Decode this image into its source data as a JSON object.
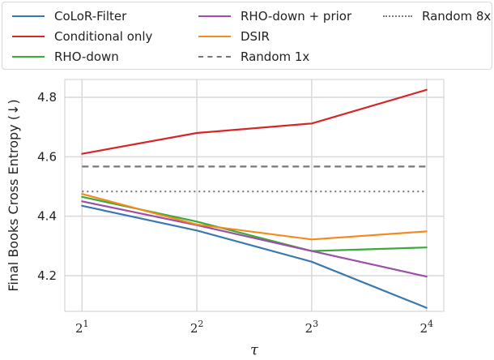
{
  "chart_data": {
    "type": "line",
    "xlabel": "τ",
    "ylabel": "Final Books Cross Entropy (↓)",
    "x": [
      2,
      4,
      8,
      16
    ],
    "x_scale": "log2",
    "xtick_labels": [
      {
        "base": "2",
        "exp": "1"
      },
      {
        "base": "2",
        "exp": "2"
      },
      {
        "base": "2",
        "exp": "3"
      },
      {
        "base": "2",
        "exp": "4"
      }
    ],
    "yticks": [
      "4.2",
      "4.4",
      "4.6",
      "4.8"
    ],
    "ylim": [
      4.08,
      4.86
    ],
    "grid": true,
    "legend_position": "top",
    "series": [
      {
        "name": "CoLoR-Filter",
        "color": "#3a78b0",
        "style": "solid",
        "values": [
          4.435,
          4.352,
          4.247,
          4.092
        ]
      },
      {
        "name": "Conditional only",
        "color": "#d62728",
        "style": "solid",
        "values": [
          4.61,
          4.68,
          4.712,
          4.825
        ]
      },
      {
        "name": "RHO-down",
        "color": "#3aaa3a",
        "style": "solid",
        "values": [
          4.465,
          4.382,
          4.283,
          4.295
        ]
      },
      {
        "name": "RHO-down + prior",
        "color": "#9b4fa9",
        "style": "solid",
        "values": [
          4.45,
          4.37,
          4.283,
          4.197
        ]
      },
      {
        "name": "DSIR",
        "color": "#f28a1c",
        "style": "solid",
        "values": [
          4.475,
          4.372,
          4.322,
          4.349
        ]
      },
      {
        "name": "Random 1x",
        "color": "#777777",
        "style": "dashed",
        "values": [
          4.567,
          4.567,
          4.567,
          4.567
        ]
      },
      {
        "name": "Random 8x",
        "color": "#777777",
        "style": "dotted",
        "values": [
          4.483,
          4.483,
          4.483,
          4.483
        ]
      }
    ]
  }
}
